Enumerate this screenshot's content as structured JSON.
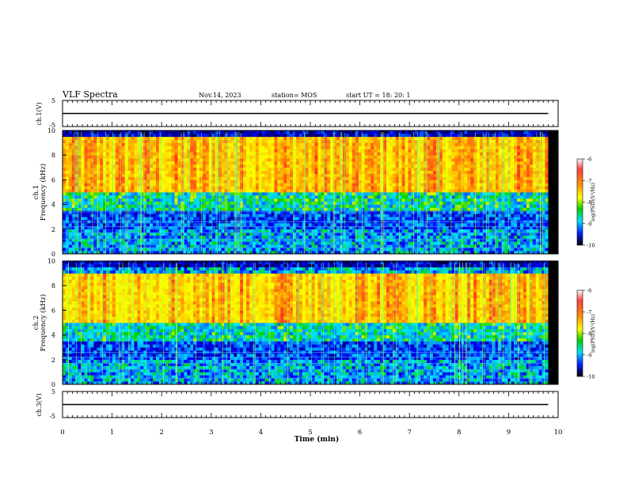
{
  "header": {
    "title": "VLF Spectra",
    "date": "Nov.14, 2023",
    "station": "station= MOS",
    "start_ut": "start UT =  18: 20: 1"
  },
  "colorbar": {
    "label": "log(PSD)(V²/Hz)",
    "ticks": [
      "-6",
      "-7",
      "-8",
      "-9",
      "-10"
    ],
    "colors": [
      "#ff2020",
      "#ff8000",
      "#ffff00",
      "#00e000",
      "#00e0ff",
      "#0000ff",
      "#000000"
    ]
  },
  "chart_data": [
    {
      "type": "line",
      "panel": "ch.1(V)",
      "ylabel": "ch.1(V)",
      "ylim": [
        -5,
        5
      ],
      "yticks": [
        "5",
        "-5"
      ],
      "xlim": [
        0,
        10
      ],
      "series": [
        {
          "x": [
            0,
            9.8
          ],
          "values": [
            0,
            0
          ]
        }
      ]
    },
    {
      "type": "heatmap",
      "panel": "ch.1 spectrogram",
      "ylabel": "ch.1 Frequency (kHz)",
      "ylim": [
        0,
        10
      ],
      "yticks": [
        "0",
        "2",
        "4",
        "6",
        "8",
        "10"
      ],
      "xlim": [
        0,
        9.8
      ],
      "color_scale": [
        -10,
        -6
      ],
      "intense_band_khz": [
        5,
        9.5
      ],
      "persistent_lines_khz": [
        0.5,
        1.2,
        1.7,
        2.2,
        2.6,
        3.4
      ]
    },
    {
      "type": "heatmap",
      "panel": "ch.2 spectrogram",
      "ylabel": "ch.2 Frequency (kHz)",
      "ylim": [
        0,
        10
      ],
      "yticks": [
        "0",
        "2",
        "4",
        "6",
        "8",
        "10"
      ],
      "xlim": [
        0,
        9.8
      ],
      "color_scale": [
        -10,
        -6
      ],
      "intense_band_khz": [
        5,
        9
      ],
      "persistent_lines_khz": [
        0.5,
        1.2,
        1.7,
        2.2,
        2.6
      ]
    },
    {
      "type": "line",
      "panel": "ch.3(V)",
      "ylabel": "ch.3(V)",
      "ylim": [
        -5,
        5
      ],
      "yticks": [
        "5",
        "-5"
      ],
      "xlim": [
        0,
        10
      ],
      "series": [
        {
          "x": [
            0,
            9.8
          ],
          "values": [
            0,
            0
          ]
        }
      ]
    }
  ],
  "xaxis": {
    "label": "Time (min)",
    "ticks": [
      "0",
      "1",
      "2",
      "3",
      "4",
      "5",
      "6",
      "7",
      "8",
      "9",
      "10"
    ],
    "range": [
      0,
      10
    ]
  }
}
